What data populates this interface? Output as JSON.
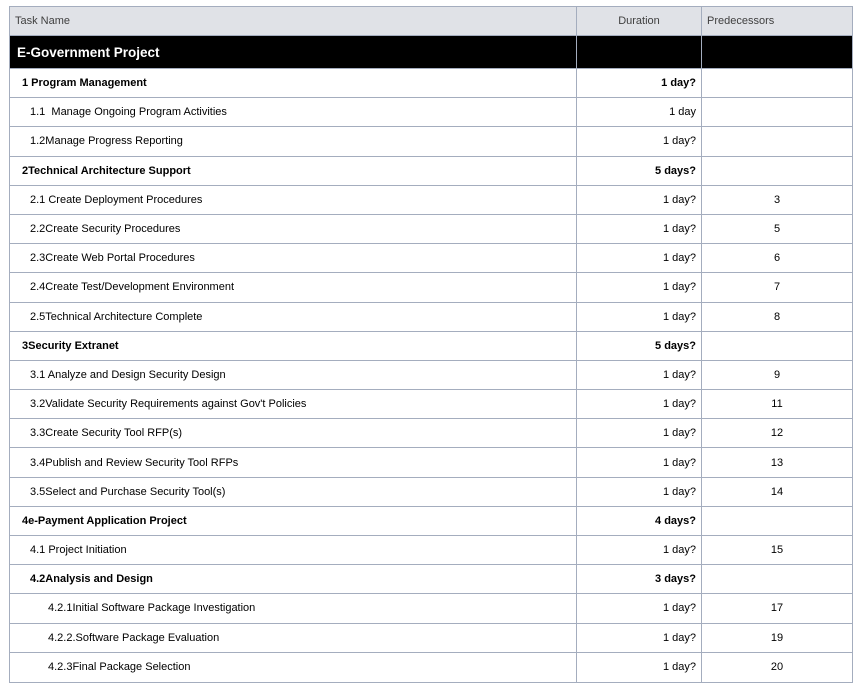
{
  "table": {
    "columns": [
      {
        "label": "Task Name"
      },
      {
        "label": "Duration"
      },
      {
        "label": "Predecessors"
      }
    ],
    "project_row": {
      "name": "E-Government Project",
      "duration": "",
      "pred": ""
    },
    "rows": [
      {
        "name": "1 Program Management",
        "duration": "1 day?",
        "pred": "",
        "level": 1,
        "bold": true
      },
      {
        "name": "1.1  Manage Ongoing Program Activities",
        "duration": "1 day",
        "pred": "",
        "level": 2,
        "bold": false
      },
      {
        "name": "1.2Manage Progress Reporting",
        "duration": "1 day?",
        "pred": "",
        "level": 2,
        "bold": false
      },
      {
        "name": "2Technical Architecture Support",
        "duration": "5 days?",
        "pred": "",
        "level": 1,
        "bold": true
      },
      {
        "name": "2.1 Create Deployment Procedures",
        "duration": "1 day?",
        "pred": "3",
        "level": 2,
        "bold": false
      },
      {
        "name": "2.2Create Security Procedures",
        "duration": "1 day?",
        "pred": "5",
        "level": 2,
        "bold": false
      },
      {
        "name": "2.3Create Web Portal Procedures",
        "duration": "1 day?",
        "pred": "6",
        "level": 2,
        "bold": false
      },
      {
        "name": "2.4Create Test/Development Environment",
        "duration": "1 day?",
        "pred": "7",
        "level": 2,
        "bold": false
      },
      {
        "name": "2.5Technical Architecture Complete",
        "duration": "1 day?",
        "pred": "8",
        "level": 2,
        "bold": false
      },
      {
        "name": "3Security Extranet",
        "duration": "5 days?",
        "pred": "",
        "level": 1,
        "bold": true
      },
      {
        "name": "3.1 Analyze and Design Security Design",
        "duration": "1 day?",
        "pred": "9",
        "level": 2,
        "bold": false
      },
      {
        "name": "3.2Validate Security Requirements against Gov't Policies",
        "duration": "1 day?",
        "pred": "11",
        "level": 2,
        "bold": false
      },
      {
        "name": "3.3Create Security Tool RFP(s)",
        "duration": "1 day?",
        "pred": "12",
        "level": 2,
        "bold": false
      },
      {
        "name": "3.4Publish and Review Security Tool RFPs",
        "duration": "1 day?",
        "pred": "13",
        "level": 2,
        "bold": false
      },
      {
        "name": "3.5Select and Purchase Security Tool(s)",
        "duration": "1 day?",
        "pred": "14",
        "level": 2,
        "bold": false
      },
      {
        "name": "4e-Payment Application Project",
        "duration": "4 days?",
        "pred": "",
        "level": 1,
        "bold": true
      },
      {
        "name": "4.1 Project Initiation",
        "duration": "1 day?",
        "pred": "15",
        "level": 2,
        "bold": false
      },
      {
        "name": "4.2Analysis and Design",
        "duration": "3 days?",
        "pred": "",
        "level": 2,
        "bold": true
      },
      {
        "name": "4.2.1Initial Software Package Investigation",
        "duration": "1 day?",
        "pred": "17",
        "level": 3,
        "bold": false
      },
      {
        "name": "4.2.2.Software Package Evaluation",
        "duration": "1 day?",
        "pred": "19",
        "level": 3,
        "bold": false
      },
      {
        "name": "4.2.3Final Package Selection",
        "duration": "1 day?",
        "pred": "20",
        "level": 3,
        "bold": false
      }
    ]
  },
  "colors": {
    "header_bg": "#e0e2e7",
    "header_text": "#3f3f3f",
    "grid_border": "#a4adbe",
    "project_row_bg": "#000000",
    "project_row_text": "#ffffff",
    "row_bg": "#ffffff",
    "row_text": "#000000"
  }
}
